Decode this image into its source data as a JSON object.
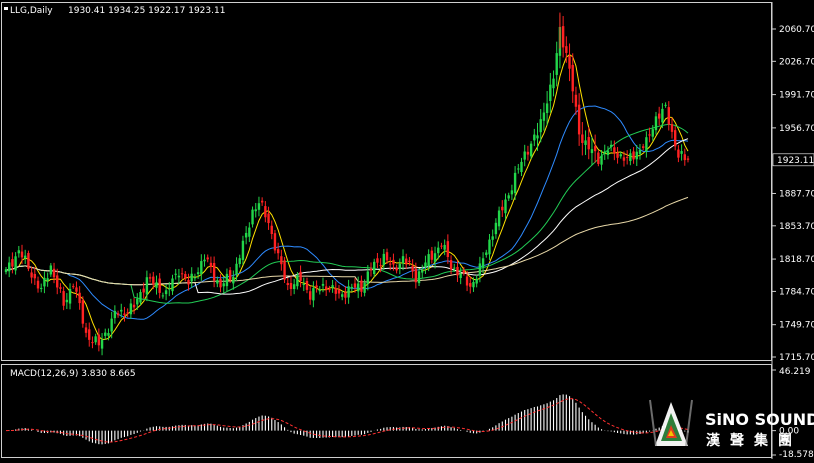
{
  "window": {
    "symbol_header": "LLG,Daily",
    "ohlc_header": "1930.41 1934.25 1922.17 1923.11"
  },
  "colors": {
    "background": "#000000",
    "bull_candle": "#22d64a",
    "bear_candle": "#ff2222",
    "ma_yellow": "#ffe000",
    "ma_blue": "#2e8bff",
    "ma_green": "#22cc55",
    "ma_white": "#ffffff",
    "ma_cream": "#e8d8a8",
    "macd_hist": "#ffffff",
    "macd_signal": "#ff3030"
  },
  "chart_data": [
    {
      "type": "candlestick",
      "title": "",
      "yticks": [
        "2060.70",
        "2026.70",
        "1991.70",
        "1956.70",
        "1887.70",
        "1853.70",
        "1818.70",
        "1784.70",
        "1749.70",
        "1715.70"
      ],
      "last_price_label": "1923.11",
      "ylim": [
        1710,
        2080
      ],
      "legs": [
        [
          0,
          1805
        ],
        [
          4,
          1828
        ],
        [
          11,
          1785
        ],
        [
          14,
          1812
        ],
        [
          18,
          1770
        ],
        [
          21,
          1795
        ],
        [
          25,
          1740
        ],
        [
          29,
          1728
        ],
        [
          34,
          1760
        ],
        [
          40,
          1768
        ],
        [
          44,
          1798
        ],
        [
          50,
          1782
        ],
        [
          54,
          1808
        ],
        [
          57,
          1792
        ],
        [
          62,
          1820
        ],
        [
          67,
          1790
        ],
        [
          71,
          1803
        ],
        [
          75,
          1843
        ],
        [
          77,
          1870
        ],
        [
          79,
          1878
        ],
        [
          82,
          1858
        ],
        [
          85,
          1820
        ],
        [
          88,
          1790
        ],
        [
          92,
          1797
        ],
        [
          95,
          1782
        ],
        [
          100,
          1792
        ],
        [
          104,
          1780
        ],
        [
          107,
          1787
        ],
        [
          111,
          1790
        ],
        [
          114,
          1808
        ],
        [
          118,
          1822
        ],
        [
          121,
          1808
        ],
        [
          124,
          1820
        ],
        [
          128,
          1800
        ],
        [
          132,
          1818
        ],
        [
          136,
          1835
        ],
        [
          139,
          1812
        ],
        [
          142,
          1802
        ],
        [
          145,
          1790
        ],
        [
          148,
          1808
        ],
        [
          152,
          1848
        ],
        [
          155,
          1872
        ],
        [
          159,
          1904
        ],
        [
          162,
          1930
        ],
        [
          166,
          1950
        ],
        [
          169,
          1988
        ],
        [
          171,
          2008
        ],
        [
          173,
          2060
        ],
        [
          175,
          2036
        ],
        [
          177,
          1996
        ],
        [
          179,
          1952
        ],
        [
          182,
          1935
        ],
        [
          185,
          1925
        ],
        [
          188,
          1934
        ],
        [
          191,
          1930
        ],
        [
          194,
          1922
        ],
        [
          197,
          1932
        ],
        [
          200,
          1940
        ],
        [
          203,
          1968
        ],
        [
          206,
          1976
        ],
        [
          208,
          1952
        ],
        [
          210,
          1928
        ],
        [
          212,
          1923
        ]
      ],
      "series": [
        {
          "name": "MA",
          "color": "#ffe000",
          "lag": 5,
          "smooth": 5
        },
        {
          "name": "MA",
          "color": "#2e8bff",
          "lag": 10,
          "smooth": 20
        },
        {
          "name": "MA",
          "color": "#22cc55",
          "lag": 14,
          "smooth": 40
        },
        {
          "name": "MA",
          "color": "#ffffff",
          "lag": 18,
          "smooth": 60
        },
        {
          "name": "MA",
          "color": "#e8d8a8",
          "lag": 24,
          "smooth": 110
        }
      ]
    },
    {
      "type": "bar",
      "title": "MACD(12,26,9) 3.830 8.665",
      "indicator": "MACD",
      "params": [
        12,
        26,
        9
      ],
      "macd_value": 3.83,
      "signal_value": 8.665,
      "yticks": [
        "46.219",
        "0.00",
        "-18.578"
      ],
      "ylim": [
        -18.578,
        46.219
      ]
    }
  ],
  "watermark": {
    "brand": "SiNO SOUND",
    "chinese": "漢聲集團"
  }
}
